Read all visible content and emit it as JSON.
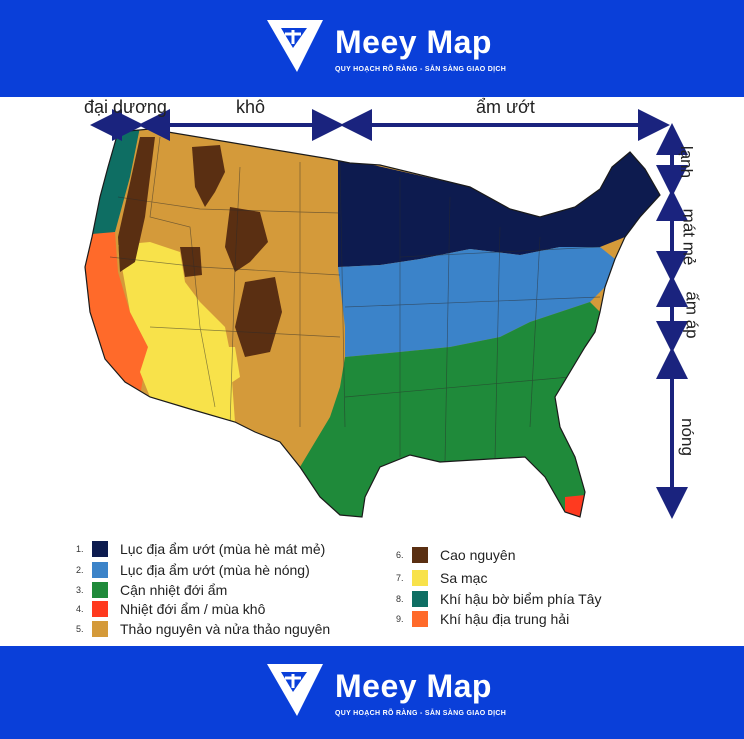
{
  "brand": {
    "name": "Meey Map",
    "tagline": "QUY HOẠCH RÕ RÀNG - SẴN SÀNG GIAO DỊCH",
    "colors": {
      "banner": "#0a3fd9",
      "text": "#ffffff"
    }
  },
  "map": {
    "top_labels": {
      "oceanic": "đại dương",
      "dry": "khô",
      "humid": "ẩm ướt"
    },
    "side_labels": {
      "cold": "lạnh",
      "cool": "mát mẻ",
      "warm": "ấm áp",
      "hot": "nóng"
    },
    "arrow_color": "#1a237e"
  },
  "legend": {
    "items": [
      {
        "num": "1.",
        "label": "Lục địa ẩm ướt (mùa hè mát mẻ)",
        "color": "#0d1b4f"
      },
      {
        "num": "2.",
        "label": "Lục địa ẩm ướt (mùa hè nóng)",
        "color": "#3b83c9"
      },
      {
        "num": "3.",
        "label": "Cận nhiệt đới ẩm",
        "color": "#1f8a3a"
      },
      {
        "num": "4.",
        "label": "Nhiệt đới ẩm / mùa khô",
        "color": "#ff3a1f"
      },
      {
        "num": "5.",
        "label": "Thảo nguyên và nửa thảo nguyên",
        "color": "#d49a3a"
      },
      {
        "num": "6.",
        "label": "Cao nguyên",
        "color": "#5a2f12"
      },
      {
        "num": "7.",
        "label": "Sa mạc",
        "color": "#f8e24a"
      },
      {
        "num": "8.",
        "label": "Khí hậu bờ biểm phía Tây",
        "color": "#0e6e63"
      },
      {
        "num": "9.",
        "label": "Khí hậu địa trung hải",
        "color": "#ff6a2a"
      }
    ]
  }
}
